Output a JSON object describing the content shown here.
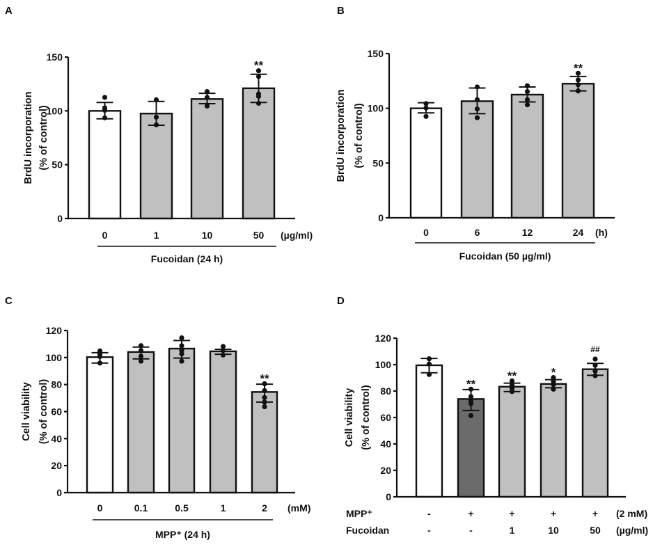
{
  "colors": {
    "white_bar": "#ffffff",
    "gray_bar": "#c0c0c0",
    "dark_bar": "#6b6b6b",
    "ink": "#111111"
  },
  "chart_data": [
    {
      "id": "A",
      "panel_label": "A",
      "type": "bar",
      "title": "",
      "ylabel": [
        "BrdU incorporation",
        "(% of control)"
      ],
      "xlabel": "Fucoidan (24 h)",
      "x_unit": "(µg/ml)",
      "ylim": [
        0,
        150
      ],
      "yticks": [
        0,
        50,
        100,
        150
      ],
      "grid": false,
      "categories": [
        "0",
        "1",
        "10",
        "50"
      ],
      "values": [
        100,
        97.5,
        111,
        121
      ],
      "error_upper": [
        107.8,
        108.8,
        116.3,
        134
      ],
      "error_lower": [
        92.6,
        86.6,
        106.7,
        107.8
      ],
      "points": [
        [
          112.5,
          102.8,
          100.6,
          93.5
        ],
        [
          110.3,
          94.1,
          87
        ],
        [
          117.9,
          112.5,
          104.5
        ],
        [
          137.3,
          131.9,
          115.7,
          113.5,
          107
        ]
      ],
      "fills": [
        "white_bar",
        "gray_bar",
        "gray_bar",
        "gray_bar"
      ],
      "significance": [
        "",
        "",
        "",
        "**"
      ]
    },
    {
      "id": "B",
      "panel_label": "B",
      "type": "bar",
      "title": "",
      "ylabel": [
        "BrdU incorporation",
        "(% of control)"
      ],
      "xlabel": "Fucoidan (50 µg/ml)",
      "x_unit": "(h)",
      "ylim": [
        0,
        150
      ],
      "yticks": [
        0,
        50,
        100,
        150
      ],
      "grid": false,
      "categories": [
        "0",
        "6",
        "12",
        "24"
      ],
      "values": [
        100,
        106.5,
        112.5,
        122.5
      ],
      "error_upper": [
        105.1,
        118.5,
        119.5,
        129.1
      ],
      "error_lower": [
        95.8,
        95.1,
        105.8,
        115.9
      ],
      "points": [
        [
          104.3,
          100.4,
          92.6
        ],
        [
          119.5,
          107.9,
          99.4,
          91.4
        ],
        [
          120.6,
          115.3,
          107.9,
          103.2
        ],
        [
          132,
          125.9,
          121.6,
          115.9
        ]
      ],
      "fills": [
        "white_bar",
        "gray_bar",
        "gray_bar",
        "gray_bar"
      ],
      "significance": [
        "",
        "",
        "",
        "**"
      ]
    },
    {
      "id": "C",
      "panel_label": "C",
      "type": "bar",
      "title": "",
      "ylabel": [
        "Cell viability",
        "(% of control)"
      ],
      "xlabel": "MPP⁺ (24 h)",
      "x_unit": "(mM)",
      "ylim": [
        0,
        120
      ],
      "yticks": [
        0,
        20,
        40,
        60,
        80,
        100,
        120
      ],
      "grid": false,
      "categories": [
        "0",
        "0.1",
        "0.5",
        "1",
        "2"
      ],
      "values": [
        100.3,
        104.1,
        106.6,
        104.6,
        74.5
      ],
      "error_upper": [
        103.6,
        107.8,
        112.6,
        106.1,
        80.3
      ],
      "error_lower": [
        95.9,
        99,
        99.6,
        102.4,
        67
      ],
      "points": [
        [
          104.9,
          102.4,
          100.7,
          95.9
        ],
        [
          108.8,
          105.3,
          101,
          97.3
        ],
        [
          114.6,
          108.7,
          105.3,
          102.7,
          97.3
        ],
        [
          108.2,
          105.3,
          101.9
        ],
        [
          80.6,
          75.5,
          70.4,
          67,
          63.6
        ]
      ],
      "fills": [
        "white_bar",
        "gray_bar",
        "gray_bar",
        "gray_bar",
        "gray_bar"
      ],
      "significance": [
        "",
        "",
        "",
        "",
        "**"
      ]
    },
    {
      "id": "D",
      "panel_label": "D",
      "type": "bar",
      "title": "",
      "ylabel": [
        "Cell viability",
        "(% of control)"
      ],
      "xlabel": "",
      "ylim": [
        0,
        120
      ],
      "yticks": [
        0,
        20,
        40,
        60,
        80,
        100,
        120
      ],
      "grid": false,
      "categories": [
        "- / -",
        "+ / -",
        "+ / 1",
        "+ / 10",
        "+ / 50"
      ],
      "condition_rows": [
        {
          "label": "MPP⁺",
          "values": [
            "-",
            "+",
            "+",
            "+",
            "+"
          ],
          "unit": "(2 mM)"
        },
        {
          "label": "Fucoidan",
          "values": [
            "-",
            "-",
            "1",
            "10",
            "50"
          ],
          "unit": "(µg/ml)"
        }
      ],
      "values": [
        99.5,
        74,
        83.3,
        85.4,
        96.5
      ],
      "error_upper": [
        104.7,
        81.1,
        86,
        88.6,
        100.9
      ],
      "error_lower": [
        93.8,
        65.3,
        79.6,
        82.5,
        91.9
      ],
      "points": [
        [
          104.4,
          100.4,
          92.5
        ],
        [
          81.4,
          75.8,
          72.3,
          70.5,
          61.4
        ],
        [
          87.7,
          84.6,
          82,
          79.6
        ],
        [
          90.2,
          87.2,
          84.9,
          81.4
        ],
        [
          104.2,
          99.5,
          95.1,
          91.6
        ]
      ],
      "fills": [
        "white_bar",
        "dark_bar",
        "gray_bar",
        "gray_bar",
        "gray_bar"
      ],
      "significance": [
        "",
        "**",
        "**",
        "*",
        "##"
      ]
    }
  ]
}
